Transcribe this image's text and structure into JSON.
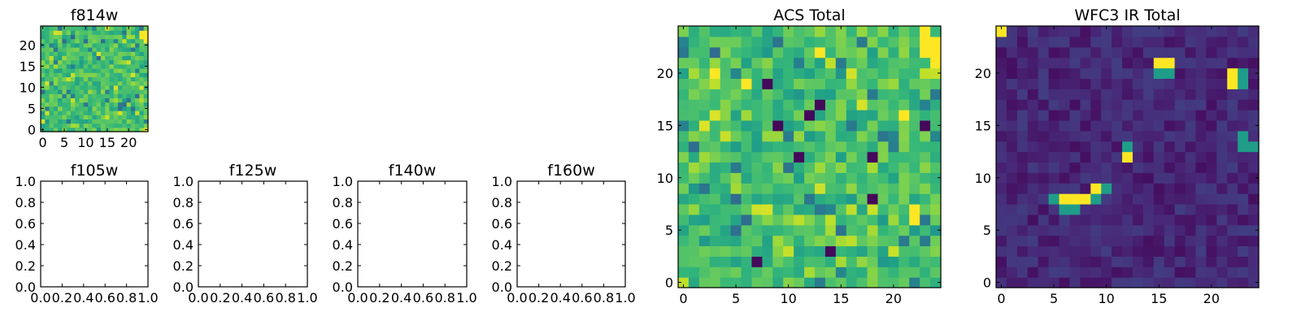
{
  "figure": {
    "panels": [
      {
        "id": "f814w",
        "title": "f814w",
        "kind": "image",
        "xticks": [
          0,
          5,
          10,
          15,
          20
        ],
        "yticks": [
          0,
          5,
          10,
          15,
          20
        ],
        "xticklabels": [
          "0",
          "5",
          "10",
          "15",
          "20"
        ],
        "yticklabels": [
          "0",
          "5",
          "10",
          "15",
          "20"
        ]
      },
      {
        "id": "f105w",
        "title": "f105w",
        "kind": "empty",
        "xticks": [
          0,
          0.2,
          0.4,
          0.6,
          0.8,
          1.0
        ],
        "yticks": [
          0,
          0.2,
          0.4,
          0.6,
          0.8,
          1.0
        ],
        "xticklabels": [
          "0.0",
          "0.2",
          "0.4",
          "0.6",
          "0.8",
          "1.0"
        ],
        "yticklabels": [
          "0.0",
          "0.2",
          "0.4",
          "0.6",
          "0.8",
          "1.0"
        ]
      },
      {
        "id": "f125w",
        "title": "f125w",
        "kind": "empty",
        "xticks": [
          0,
          0.2,
          0.4,
          0.6,
          0.8,
          1.0
        ],
        "yticks": [
          0,
          0.2,
          0.4,
          0.6,
          0.8,
          1.0
        ],
        "xticklabels": [
          "0.0",
          "0.2",
          "0.4",
          "0.6",
          "0.8",
          "1.0"
        ],
        "yticklabels": [
          "0.0",
          "0.2",
          "0.4",
          "0.6",
          "0.8",
          "1.0"
        ]
      },
      {
        "id": "f140w",
        "title": "f140w",
        "kind": "empty",
        "xticks": [
          0,
          0.2,
          0.4,
          0.6,
          0.8,
          1.0
        ],
        "yticks": [
          0,
          0.2,
          0.4,
          0.6,
          0.8,
          1.0
        ],
        "xticklabels": [
          "0.0",
          "0.2",
          "0.4",
          "0.6",
          "0.8",
          "1.0"
        ],
        "yticklabels": [
          "0.0",
          "0.2",
          "0.4",
          "0.6",
          "0.8",
          "1.0"
        ]
      },
      {
        "id": "f160w",
        "title": "f160w",
        "kind": "empty",
        "xticks": [
          0,
          0.2,
          0.4,
          0.6,
          0.8,
          1.0
        ],
        "yticks": [
          0,
          0.2,
          0.4,
          0.6,
          0.8,
          1.0
        ],
        "xticklabels": [
          "0.0",
          "0.2",
          "0.4",
          "0.6",
          "0.8",
          "1.0"
        ],
        "yticklabels": [
          "0.0",
          "0.2",
          "0.4",
          "0.6",
          "0.8",
          "1.0"
        ]
      },
      {
        "id": "acs-total",
        "title": "ACS Total",
        "kind": "image",
        "xticks": [
          0,
          5,
          10,
          15,
          20
        ],
        "yticks": [
          0,
          5,
          10,
          15,
          20
        ],
        "xticklabels": [
          "0",
          "5",
          "10",
          "15",
          "20"
        ],
        "yticklabels": [
          "0",
          "5",
          "10",
          "15",
          "20"
        ]
      },
      {
        "id": "wfc3-ir-total",
        "title": "WFC3 IR Total",
        "kind": "image",
        "xticks": [
          0,
          5,
          10,
          15,
          20
        ],
        "yticks": [
          0,
          5,
          10,
          15,
          20
        ],
        "xticklabels": [
          "0",
          "5",
          "10",
          "15",
          "20"
        ],
        "yticklabels": [
          "0",
          "5",
          "10",
          "15",
          "20"
        ]
      }
    ]
  },
  "chart_data": [
    {
      "type": "heatmap",
      "title": "f814w",
      "colormap": "viridis",
      "grid": false,
      "xlim": [
        -0.5,
        24.5
      ],
      "ylim": [
        -0.5,
        24.5
      ],
      "nx": 25,
      "ny": 25,
      "pattern": "noise",
      "bright_cells": [
        [
          23,
          22
        ],
        [
          24,
          22
        ],
        [
          23,
          23
        ],
        [
          24,
          23
        ],
        [
          24,
          21
        ]
      ]
    },
    {
      "type": "empty",
      "title": "f105w",
      "xlim": [
        0,
        1
      ],
      "ylim": [
        0,
        1
      ]
    },
    {
      "type": "empty",
      "title": "f125w",
      "xlim": [
        0,
        1
      ],
      "ylim": [
        0,
        1
      ]
    },
    {
      "type": "empty",
      "title": "f140w",
      "xlim": [
        0,
        1
      ],
      "ylim": [
        0,
        1
      ]
    },
    {
      "type": "empty",
      "title": "f160w",
      "xlim": [
        0,
        1
      ],
      "ylim": [
        0,
        1
      ]
    },
    {
      "type": "heatmap",
      "title": "ACS Total",
      "colormap": "viridis",
      "grid": false,
      "xlim": [
        -0.5,
        24.5
      ],
      "ylim": [
        -0.5,
        24.5
      ],
      "nx": 25,
      "ny": 25,
      "pattern": "noise",
      "bright_cells": [
        [
          23,
          22
        ],
        [
          24,
          22
        ],
        [
          23,
          23
        ],
        [
          24,
          23
        ],
        [
          23,
          24
        ],
        [
          24,
          21
        ],
        [
          3,
          20
        ],
        [
          22,
          6
        ],
        [
          22,
          7
        ],
        [
          13,
          22
        ],
        [
          6,
          19
        ],
        [
          21,
          16
        ]
      ],
      "dark_cells": [
        [
          8,
          19
        ],
        [
          9,
          15
        ],
        [
          13,
          17
        ],
        [
          18,
          12
        ],
        [
          18,
          8
        ],
        [
          7,
          2
        ],
        [
          14,
          3
        ],
        [
          23,
          15
        ],
        [
          12,
          16
        ],
        [
          11,
          12
        ]
      ]
    },
    {
      "type": "heatmap",
      "title": "WFC3 IR Total",
      "colormap": "viridis",
      "grid": false,
      "xlim": [
        -0.5,
        24.5
      ],
      "ylim": [
        -0.5,
        24.5
      ],
      "nx": 25,
      "ny": 25,
      "pattern": "sources",
      "bright_cells": [
        [
          0,
          24
        ],
        [
          15,
          21
        ],
        [
          16,
          21
        ],
        [
          22,
          20
        ],
        [
          22,
          19
        ],
        [
          12,
          12
        ],
        [
          6,
          8
        ],
        [
          7,
          8
        ],
        [
          8,
          8
        ],
        [
          9,
          9
        ]
      ],
      "mid_cells": [
        [
          15,
          20
        ],
        [
          16,
          20
        ],
        [
          23,
          20
        ],
        [
          23,
          19
        ],
        [
          12,
          13
        ],
        [
          5,
          8
        ],
        [
          6,
          7
        ],
        [
          7,
          7
        ],
        [
          10,
          9
        ],
        [
          9,
          8
        ],
        [
          23,
          13
        ],
        [
          24,
          13
        ],
        [
          23,
          14
        ]
      ]
    }
  ]
}
